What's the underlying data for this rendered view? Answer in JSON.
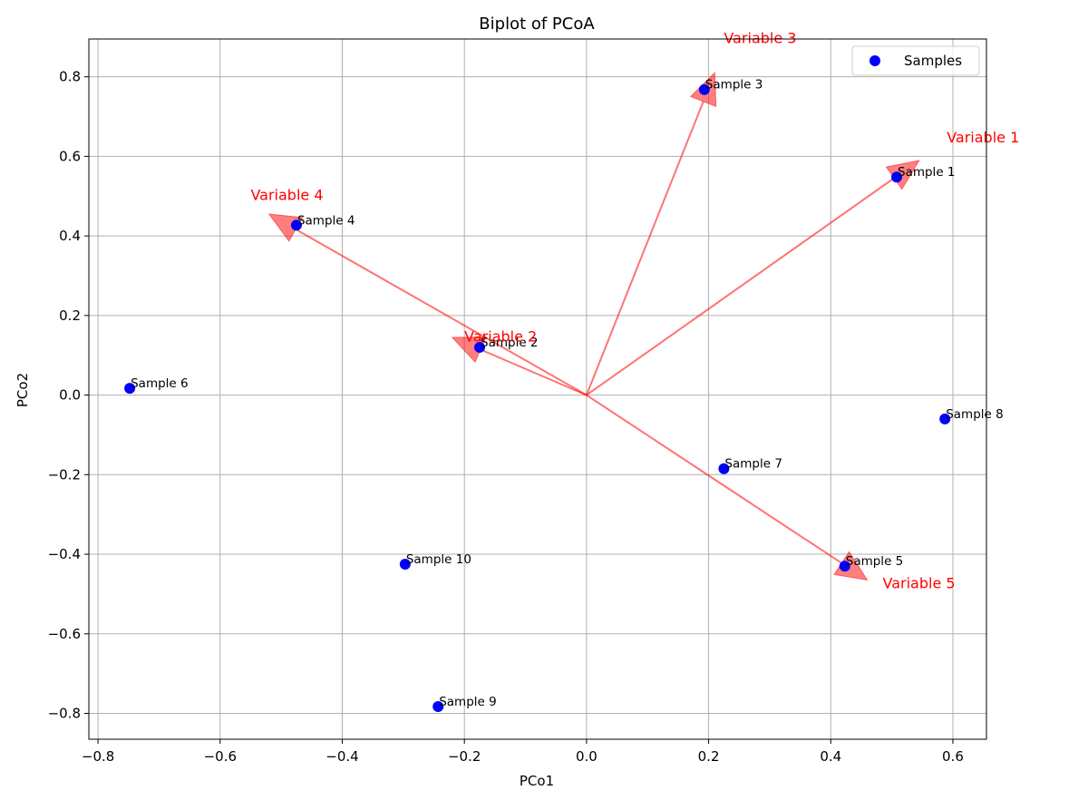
{
  "chart_data": {
    "type": "scatter",
    "title": "Biplot of PCoA",
    "xlabel": "PCo1",
    "ylabel": "PCo2",
    "xlim": [
      -0.815,
      0.655
    ],
    "ylim": [
      -0.865,
      0.895
    ],
    "xticks": [
      -0.8,
      -0.6,
      -0.4,
      -0.2,
      0.0,
      0.2,
      0.4,
      0.6
    ],
    "yticks": [
      -0.8,
      -0.6,
      -0.4,
      -0.2,
      0.0,
      0.2,
      0.4,
      0.6,
      0.8
    ],
    "xtick_labels": [
      "−0.8",
      "−0.6",
      "−0.4",
      "−0.2",
      "0.0",
      "0.2",
      "0.4",
      "0.6"
    ],
    "ytick_labels": [
      "−0.8",
      "−0.6",
      "−0.4",
      "−0.2",
      "0.0",
      "0.2",
      "0.4",
      "0.6",
      "0.8"
    ],
    "grid": true,
    "legend": {
      "placement": "top-right",
      "entries": [
        {
          "name": "Samples",
          "color": "#0000ff",
          "marker": "circle"
        }
      ]
    },
    "series": [
      {
        "name": "Samples",
        "color": "#0000ff",
        "points": [
          {
            "label": "Sample 1",
            "x": 0.508,
            "y": 0.548
          },
          {
            "label": "Sample 2",
            "x": -0.175,
            "y": 0.12
          },
          {
            "label": "Sample 3",
            "x": 0.193,
            "y": 0.768
          },
          {
            "label": "Sample 4",
            "x": -0.475,
            "y": 0.427
          },
          {
            "label": "Sample 5",
            "x": 0.423,
            "y": -0.43
          },
          {
            "label": "Sample 6",
            "x": -0.748,
            "y": 0.017
          },
          {
            "label": "Sample 7",
            "x": 0.225,
            "y": -0.185
          },
          {
            "label": "Sample 8",
            "x": 0.587,
            "y": -0.06
          },
          {
            "label": "Sample 9",
            "x": -0.243,
            "y": -0.783
          },
          {
            "label": "Sample 10",
            "x": -0.297,
            "y": -0.425
          }
        ]
      }
    ],
    "vectors": {
      "color": "#ff0000",
      "items": [
        {
          "label": "Variable 1",
          "x": 0.545,
          "y": 0.59,
          "label_x": 0.59,
          "label_y": 0.635
        },
        {
          "label": "Variable 2",
          "x": -0.22,
          "y": 0.145,
          "label_x": -0.2,
          "label_y": 0.135
        },
        {
          "label": "Variable 3",
          "x": 0.21,
          "y": 0.81,
          "label_x": 0.225,
          "label_y": 0.885
        },
        {
          "label": "Variable 4",
          "x": -0.52,
          "y": 0.455,
          "label_x": -0.55,
          "label_y": 0.49
        },
        {
          "label": "Variable 5",
          "x": 0.46,
          "y": -0.465,
          "label_x": 0.485,
          "label_y": -0.485
        }
      ]
    }
  }
}
